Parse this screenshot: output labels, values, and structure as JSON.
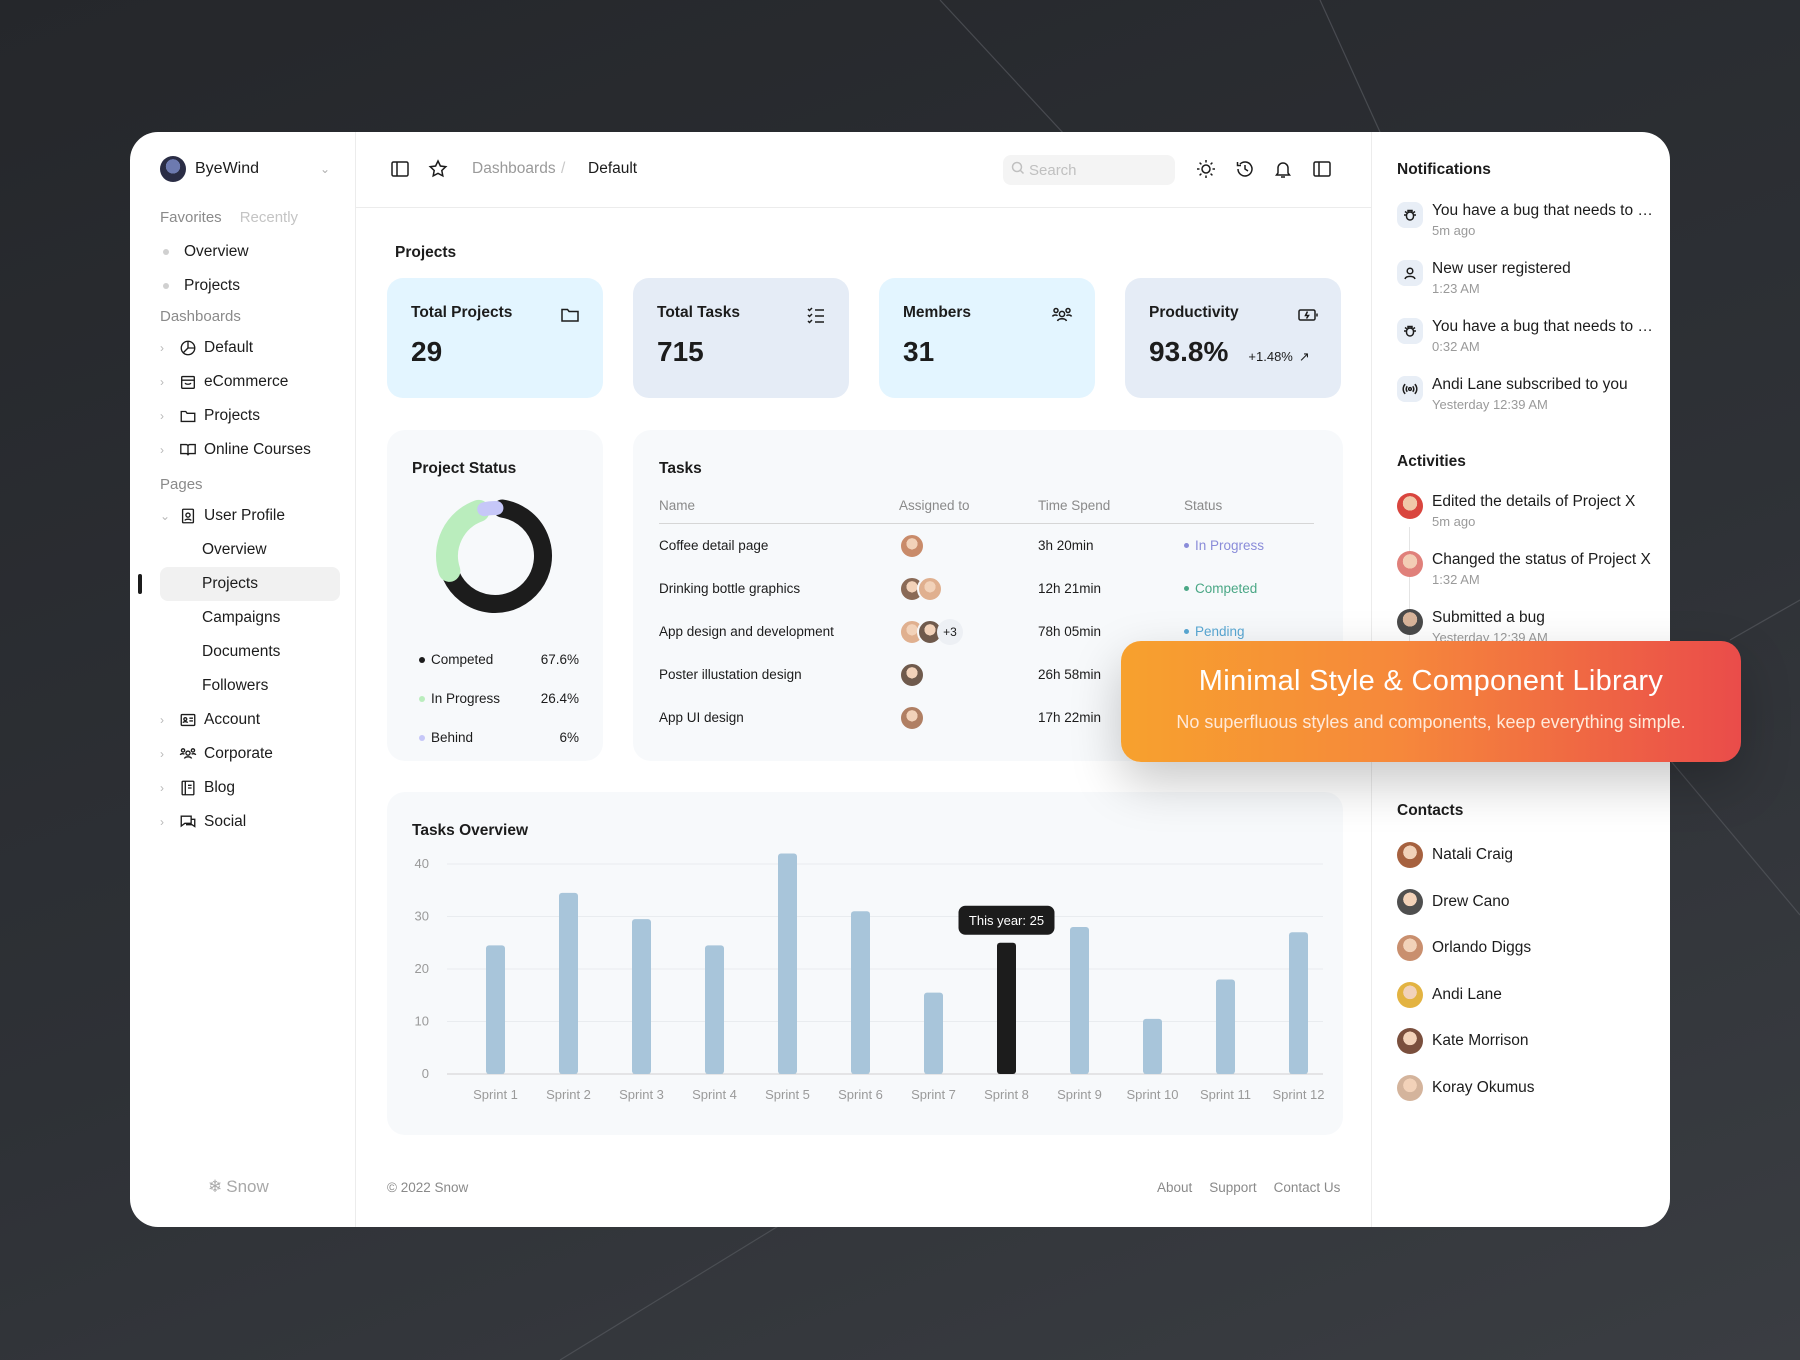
{
  "sidebar": {
    "user_name": "ByeWind",
    "tabs": [
      "Favorites",
      "Recently"
    ],
    "favorites": [
      "Overview",
      "Projects"
    ],
    "dashboards_label": "Dashboards",
    "dashboards": [
      "Default",
      "eCommerce",
      "Projects",
      "Online Courses"
    ],
    "pages_label": "Pages",
    "user_profile": "User Profile",
    "user_profile_sub": [
      "Overview",
      "Projects",
      "Campaigns",
      "Documents",
      "Followers"
    ],
    "pages_more": [
      "Account",
      "Corporate",
      "Blog",
      "Social"
    ],
    "footer_brand": "Snow"
  },
  "topbar": {
    "breadcrumb": [
      "Dashboards",
      "Default"
    ],
    "breadcrumb_sep": "/",
    "search_placeholder": "Search"
  },
  "projects": {
    "title": "Projects",
    "stats": [
      {
        "label": "Total Projects",
        "value": "29",
        "bg": "#e3f5ff",
        "icon": "folder-icon"
      },
      {
        "label": "Total Tasks",
        "value": "715",
        "bg": "#e5ecf6",
        "icon": "checklist-icon"
      },
      {
        "label": "Members",
        "value": "31",
        "bg": "#e3f5ff",
        "icon": "users-icon"
      },
      {
        "label": "Productivity",
        "value": "93.8%",
        "change": "+1.48%",
        "bg": "#e5ecf6",
        "icon": "battery-charge-icon"
      }
    ]
  },
  "project_status": {
    "title": "Project Status",
    "items": [
      {
        "label": "Competed",
        "percent": "67.6%",
        "value": 67.6,
        "color": "#1c1c1c"
      },
      {
        "label": "In Progress",
        "percent": "26.4%",
        "value": 26.4,
        "color": "#baedbd"
      },
      {
        "label": "Behind",
        "percent": "6%",
        "value": 6,
        "color": "#c6c7f8"
      }
    ]
  },
  "tasks": {
    "title": "Tasks",
    "columns": [
      "Name",
      "Assigned to",
      "Time Spend",
      "Status"
    ],
    "rows": [
      {
        "name": "Coffee detail page",
        "time": "3h 20min",
        "status": "In Progress",
        "status_color": "#8a8cd9",
        "avatars": 1,
        "more": ""
      },
      {
        "name": "Drinking bottle graphics",
        "time": "12h 21min",
        "status": "Competed",
        "status_color": "#4aa785",
        "avatars": 2,
        "more": ""
      },
      {
        "name": "App design and development",
        "time": "78h 05min",
        "status": "Pending",
        "status_color": "#59a8d4",
        "avatars": 2,
        "more": "+3"
      },
      {
        "name": "Poster illustation design",
        "time": "26h 58min",
        "status": "",
        "status_color": "#59a8d4",
        "avatars": 1,
        "more": ""
      },
      {
        "name": "App UI design",
        "time": "17h 22min",
        "status": "",
        "status_color": "#59a8d4",
        "avatars": 1,
        "more": ""
      }
    ]
  },
  "chart_data": {
    "type": "bar",
    "title": "Tasks Overview",
    "categories": [
      "Sprint 1",
      "Sprint 2",
      "Sprint 3",
      "Sprint 4",
      "Sprint 5",
      "Sprint 6",
      "Sprint 7",
      "Sprint 8",
      "Sprint 9",
      "Sprint 10",
      "Sprint 11",
      "Sprint 12"
    ],
    "values": [
      24.5,
      34.5,
      29.5,
      24.5,
      42,
      31,
      15.5,
      25,
      28,
      10.5,
      18,
      27
    ],
    "highlight_index": 7,
    "tooltip": "This year: 25",
    "ylim": [
      0,
      40
    ],
    "yticks": [
      0,
      10,
      20,
      30,
      40
    ],
    "bar_color": "#a8c5da",
    "highlight_color": "#1c1c1c",
    "grid": true
  },
  "footer": {
    "copyright": "© 2022 Snow",
    "links": [
      "About",
      "Support",
      "Contact Us"
    ]
  },
  "right_panel": {
    "notifications_title": "Notifications",
    "notifications": [
      {
        "text": "You have a bug that needs to be fixed",
        "time": "5m ago",
        "icon": "bug-icon"
      },
      {
        "text": "New user registered",
        "time": "1:23 AM",
        "icon": "user-icon"
      },
      {
        "text": "You have a bug that needs to be fixed",
        "time": "0:32 AM",
        "icon": "bug-icon"
      },
      {
        "text": "Andi Lane subscribed to you",
        "time": "Yesterday 12:39 AM",
        "icon": "broadcast-icon"
      }
    ],
    "activities_title": "Activities",
    "activities": [
      {
        "text": "Edited the details of Project X",
        "time": "5m ago"
      },
      {
        "text": "Changed the status of Project X",
        "time": "1:32 AM"
      },
      {
        "text": "Submitted a bug",
        "time": "Yesterday 12:39 AM"
      }
    ],
    "contacts_title": "Contacts",
    "contacts": [
      "Natali Craig",
      "Drew Cano",
      "Orlando Diggs",
      "Andi Lane",
      "Kate Morrison",
      "Koray Okumus"
    ]
  },
  "banner": {
    "title": "Minimal Style & Component Library",
    "subtitle": "No superfluous styles and components, keep everything simple."
  }
}
